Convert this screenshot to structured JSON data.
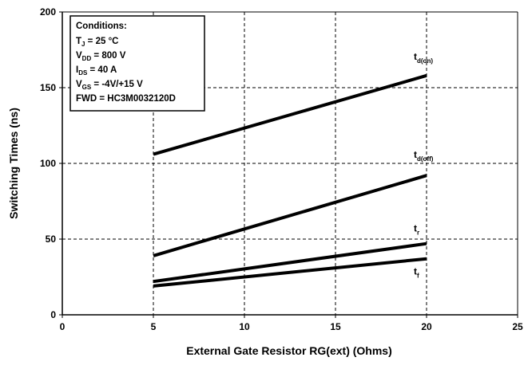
{
  "chart_data": {
    "type": "line",
    "xlabel": "External Gate Resistor RG(ext) (Ohms)",
    "ylabel": "Switching Times (ns)",
    "xlim": [
      0,
      25
    ],
    "ylim": [
      0,
      200
    ],
    "xticks": [
      0,
      5,
      10,
      15,
      20,
      25
    ],
    "yticks": [
      0,
      50,
      100,
      150,
      200
    ],
    "grid": true,
    "series": [
      {
        "name": "t",
        "sub": "d(on)",
        "x": [
          5,
          20
        ],
        "y": [
          106,
          158
        ]
      },
      {
        "name": "t",
        "sub": "d(off)",
        "x": [
          5,
          20
        ],
        "y": [
          39,
          92
        ]
      },
      {
        "name": "t",
        "sub": "r",
        "x": [
          5,
          20
        ],
        "y": [
          22,
          47
        ]
      },
      {
        "name": "t",
        "sub": "f",
        "x": [
          5,
          20
        ],
        "y": [
          19,
          37
        ]
      }
    ],
    "conditions": {
      "title": "Conditions:",
      "lines": [
        {
          "main": "T",
          "sub": "J",
          "rest": " = 25 °C"
        },
        {
          "main": "V",
          "sub": "DD",
          "rest": " = 800 V"
        },
        {
          "main": "I",
          "sub": "DS",
          "rest": " = 40 A"
        },
        {
          "main": "V",
          "sub": "GS",
          "rest": " = -4V/+15 V"
        },
        {
          "main": "FWD = HC3M0032120D",
          "sub": "",
          "rest": ""
        }
      ]
    }
  }
}
